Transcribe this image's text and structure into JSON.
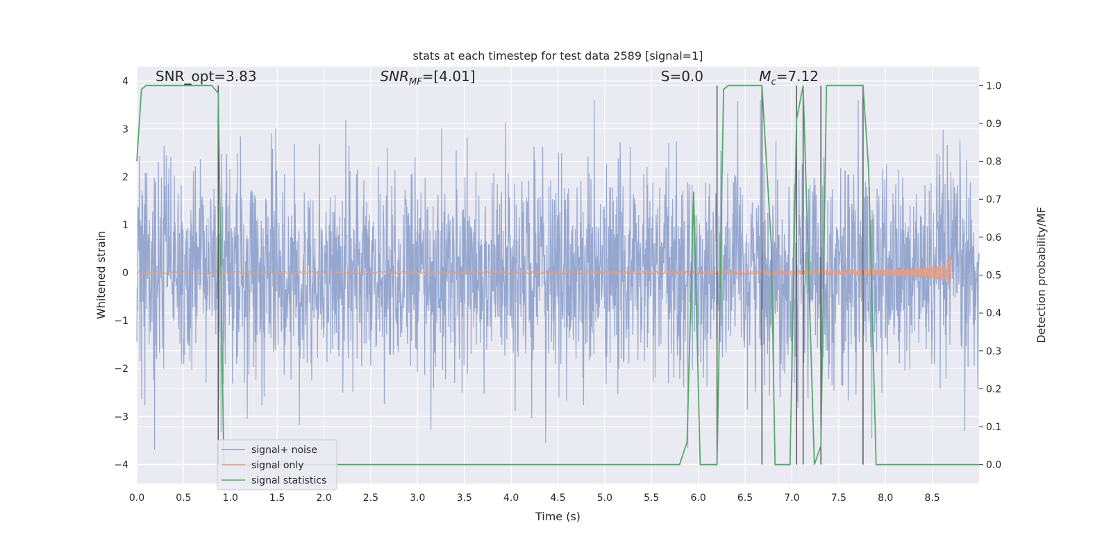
{
  "chart_data": {
    "type": "line",
    "title": "stats at each timestep for test data 2589 [signal=1]",
    "xlabel": "Time (s)",
    "ylabel": "Whitened strain",
    "y2label": "Detection probability/MF",
    "xlim": [
      0.0,
      9.0
    ],
    "ylim": [
      -4.4,
      4.3
    ],
    "y2lim": [
      -0.05,
      1.05
    ],
    "xticks": [
      0.0,
      0.5,
      1.0,
      1.5,
      2.0,
      2.5,
      3.0,
      3.5,
      4.0,
      4.5,
      5.0,
      5.5,
      6.0,
      6.5,
      7.0,
      7.5,
      8.0,
      8.5
    ],
    "xtick_labels": [
      "0.0",
      "0.5",
      "1.0",
      "1.5",
      "2.0",
      "2.5",
      "3.0",
      "3.5",
      "4.0",
      "4.5",
      "5.0",
      "5.5",
      "6.0",
      "6.5",
      "7.0",
      "7.5",
      "8.0",
      "8.5"
    ],
    "yticks": [
      -4,
      -3,
      -2,
      -1,
      0,
      1,
      2,
      3,
      4
    ],
    "ytick_labels": [
      "−4",
      "−3",
      "−2",
      "−1",
      "0",
      "1",
      "2",
      "3",
      "4"
    ],
    "y2ticks": [
      0.0,
      0.1,
      0.2,
      0.3,
      0.4,
      0.5,
      0.6,
      0.7,
      0.8,
      0.9,
      1.0
    ],
    "y2tick_labels": [
      "0.0",
      "0.1",
      "0.2",
      "0.3",
      "0.4",
      "0.5",
      "0.6",
      "0.7",
      "0.8",
      "0.9",
      "1.0"
    ],
    "grid": true,
    "legend_position": "lower-left",
    "annotations": [
      {
        "text": "SNR_opt=3.83",
        "x": 0.2,
        "y": 4.1
      },
      {
        "text": "SNR_MF=[4.01]",
        "x": 2.6,
        "y": 4.1
      },
      {
        "text": "S=0.0",
        "x": 5.6,
        "y": 4.1
      },
      {
        "text": "M_c=7.12",
        "x": 6.65,
        "y": 4.1
      }
    ],
    "series": [
      {
        "name": "signal+ noise",
        "color": "#8da0cb",
        "kind": "noise",
        "x_range": [
          0.0,
          9.0
        ],
        "y_range": [
          -3.7,
          3.6
        ]
      },
      {
        "name": "signal only",
        "color": "#e39d81",
        "kind": "chirp",
        "x_range": [
          0.0,
          8.7
        ],
        "peak_amplitude": 0.5
      },
      {
        "name": "signal statistics",
        "color": "#55a868",
        "kind": "probability",
        "x": [
          0.0,
          0.05,
          0.1,
          0.8,
          0.87,
          0.93,
          5.8,
          5.88,
          5.95,
          6.02,
          6.2,
          6.27,
          6.32,
          6.68,
          6.78,
          6.82,
          6.98,
          7.05,
          7.12,
          7.24,
          7.31,
          7.37,
          7.76,
          7.82,
          7.9,
          9.0
        ],
        "y": [
          0.8,
          0.99,
          1.0,
          1.0,
          0.98,
          0.0,
          0.0,
          0.06,
          0.72,
          0.0,
          0.0,
          0.99,
          1.0,
          1.0,
          0.58,
          0.0,
          0.0,
          0.91,
          1.0,
          0.0,
          0.05,
          1.0,
          1.0,
          0.78,
          0.0,
          0.0
        ]
      }
    ],
    "vertical_lines": {
      "color": "#555555",
      "x": [
        0.87,
        6.2,
        6.68,
        7.05,
        7.12,
        7.31,
        7.76
      ],
      "y_range": [
        0.0,
        1.0
      ]
    }
  }
}
